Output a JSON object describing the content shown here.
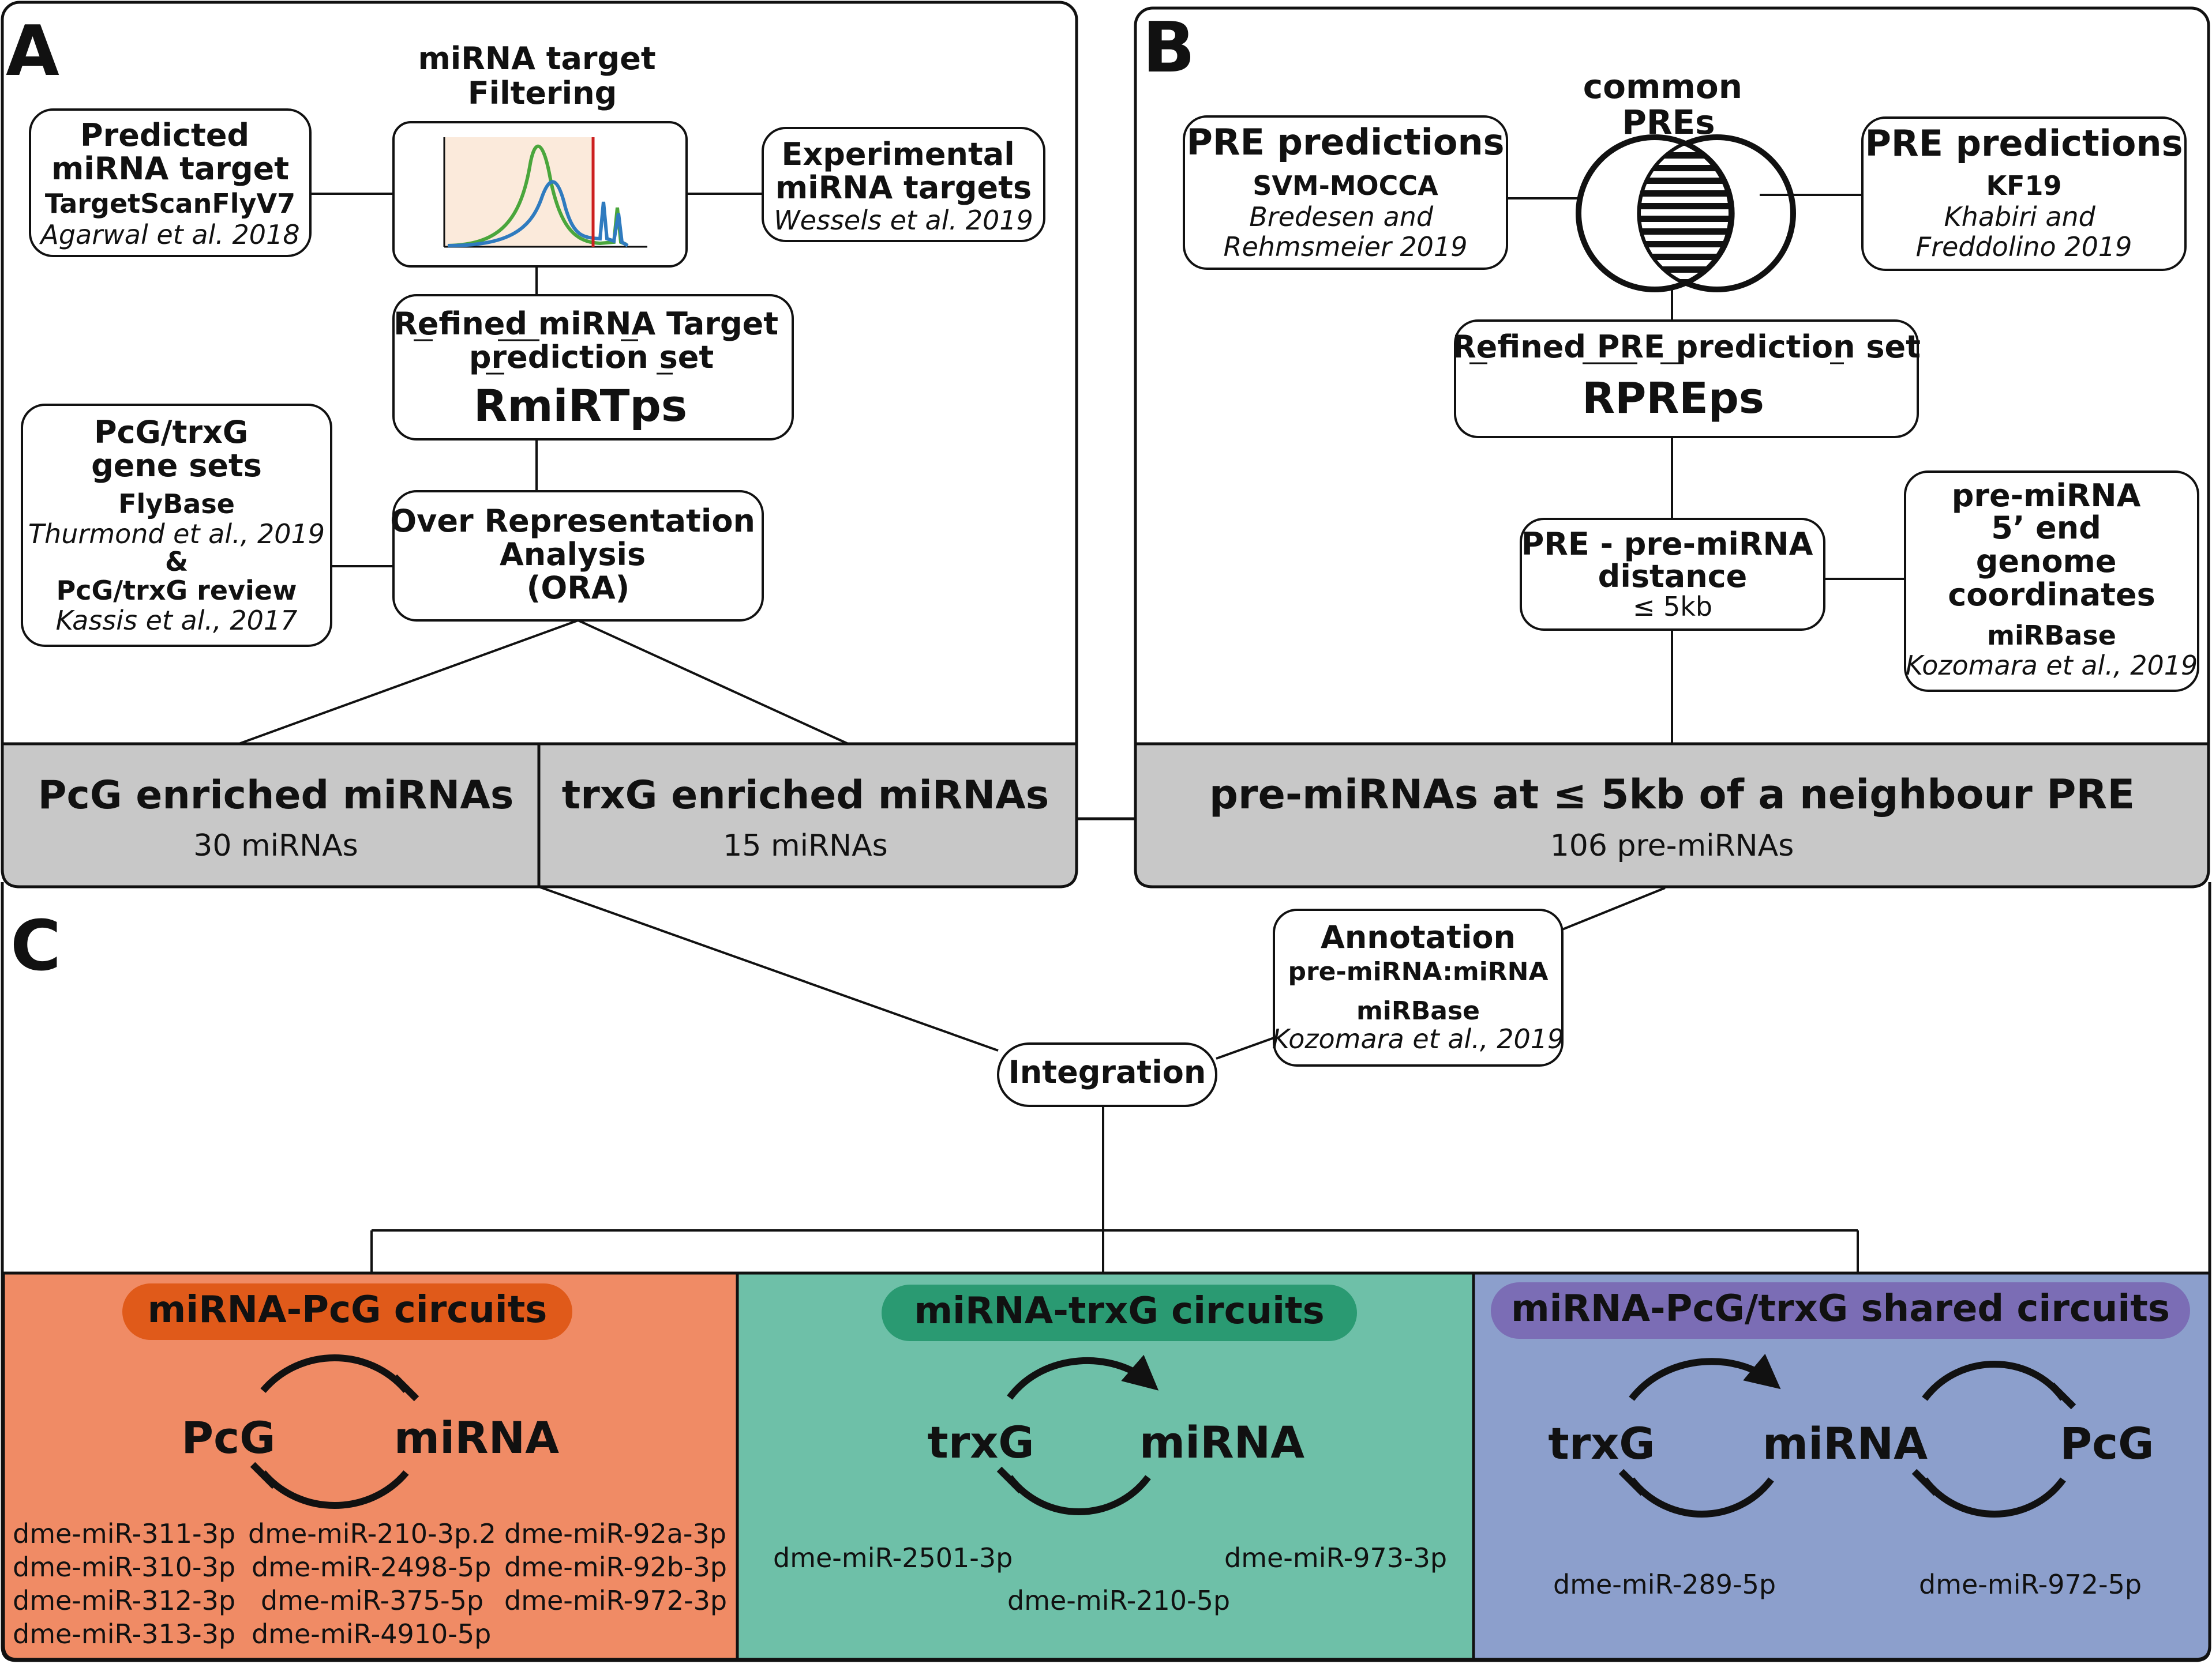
{
  "panel_labels": {
    "a": "A",
    "b": "B",
    "c": "C"
  },
  "panel_a": {
    "filter_title": [
      "miRNA target",
      "Filtering"
    ],
    "predicted": {
      "title": [
        "Predicted",
        "miRNA target"
      ],
      "source": "TargetScanFlyV7",
      "cite": "Agarwal et al. 2018"
    },
    "experimental": {
      "title": [
        "Experimental",
        "miRNA targets"
      ],
      "cite": "Wessels et al. 2019"
    },
    "refined": {
      "line1": "Refined miRNA Target",
      "line2": "prediction set",
      "acronym": "RmiRTps"
    },
    "genesets": {
      "title": [
        "PcG/trxG",
        "gene sets"
      ],
      "source1": "FlyBase",
      "cite1": "Thurmond et al., 2019",
      "amp": "&",
      "source2": "PcG/trxG review",
      "cite2": "Kassis et al., 2017"
    },
    "ora": {
      "lines": [
        "Over Representation",
        "Analysis",
        "(ORA)"
      ]
    },
    "pcg_result": {
      "title": "PcG enriched miRNAs",
      "count": "30 miRNAs"
    },
    "trxg_result": {
      "title": "trxG enriched miRNAs",
      "count": "15 miRNAs"
    }
  },
  "panel_b": {
    "common": [
      "common",
      "PREs"
    ],
    "svm": {
      "title": "PRE predictions",
      "source": "SVM-MOCCA",
      "cite": [
        "Bredesen and",
        "Rehmsmeier 2019"
      ]
    },
    "kf": {
      "title": "PRE predictions",
      "source": "KF19",
      "cite": [
        "Khabiri and",
        "Freddolino 2019"
      ]
    },
    "refined": {
      "line1": "Refined PRE  prediction set",
      "acronym": "RPREps"
    },
    "distance": {
      "lines": [
        "PRE - pre-miRNA",
        "distance"
      ],
      "value": "≤ 5kb"
    },
    "coords": {
      "lines": [
        "pre-miRNA",
        "5’ end",
        "genome",
        "coordinates"
      ],
      "source": "miRBase",
      "cite": "Kozomara et al., 2019"
    },
    "result": {
      "title": "pre-miRNAs at ≤ 5kb of a neighbour PRE",
      "count": "106 pre-miRNAs"
    }
  },
  "panel_c": {
    "annotation": {
      "title": "Annotation",
      "sub": "pre-miRNA:miRNA",
      "source": "miRBase",
      "cite": "Kozomara et al., 2019"
    },
    "integration": "Integration",
    "circuits": [
      {
        "title": "miRNA-PcG circuits",
        "left": "PcG",
        "right": "miRNA",
        "col1": [
          "dme-miR-311-3p",
          "dme-miR-310-3p",
          "dme-miR-312-3p",
          "dme-miR-313-3p"
        ],
        "col2": [
          "dme-miR-210-3p.2",
          "dme-miR-2498-5p",
          "dme-miR-375-5p",
          "dme-miR-4910-5p"
        ],
        "col3": [
          "dme-miR-92a-3p",
          "dme-miR-92b-3p",
          "dme-miR-972-3p"
        ]
      },
      {
        "title": "miRNA-trxG circuits",
        "left": "trxG",
        "right": "miRNA",
        "mirs": [
          "dme-miR-2501-3p",
          "dme-miR-973-3p",
          "dme-miR-210-5p"
        ]
      },
      {
        "title": "miRNA-PcG/trxG shared circuits",
        "left": "trxG",
        "mid": "miRNA",
        "right": "PcG",
        "mirs": [
          "dme-miR-289-5p",
          "dme-miR-972-5p"
        ]
      }
    ]
  },
  "colors": {
    "pcg_bg": "#f08b65",
    "pcg_pill": "#e05a1a",
    "trxg_bg": "#6ec0a8",
    "trxg_pill": "#2a9a72",
    "shared_bg": "#8c9fcc",
    "shared_pill": "#7b6db5",
    "result_grey": "#c8c8c8",
    "chart_bg": "#fbeadb",
    "curve_green": "#4aa63c",
    "curve_blue": "#2f7bbf",
    "cutoff_red": "#cc1f1f"
  }
}
